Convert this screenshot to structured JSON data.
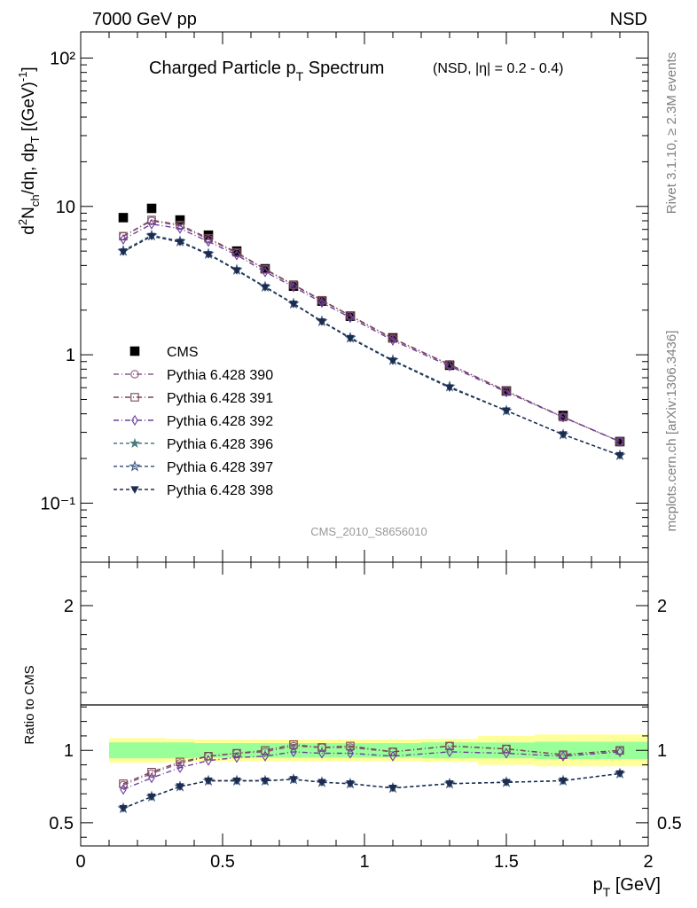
{
  "header": {
    "energy_label": "7000 GeV pp",
    "process_label": "NSD",
    "title_main": "Charged Particle p",
    "title_main_sub": "T",
    "title_main_tail": " Spectrum",
    "title_cut": "(NSD, |η| = 0.2 - 0.4)",
    "analysis_id": "CMS_2010_S8656010"
  },
  "side": {
    "rivet_label": "Rivet 3.1.10, ≥ 2.3M events",
    "source_label": "mcplots.cern.ch [arXiv:1306.3436]"
  },
  "colors": {
    "cms": "#000000",
    "p390": "#8a5a86",
    "p391": "#7a4552",
    "p392": "#6b3fa0",
    "p396": "#4a7c80",
    "p397": "#3a5a80",
    "p398": "#1d2b4f",
    "band_inner": "#99ff99",
    "band_outer": "#ffff99"
  },
  "chart_data": [
    {
      "type": "scatter",
      "panel": "main",
      "ylabel": "d²N_ch/dη, dp_T [(GeV)⁻¹]",
      "yscale": "log",
      "ylim": [
        0.04,
        150
      ],
      "xlim": [
        0,
        2
      ],
      "ytick_labels": [
        "10⁻¹",
        "1",
        "10",
        "10²"
      ],
      "x": [
        0.15,
        0.25,
        0.35,
        0.45,
        0.55,
        0.65,
        0.75,
        0.85,
        0.95,
        1.1,
        1.3,
        1.5,
        1.7,
        1.9
      ],
      "series": [
        {
          "name": "CMS",
          "key": "cms",
          "marker": "filled-square",
          "values": [
            8.4,
            9.7,
            8.1,
            6.4,
            5.0,
            3.8,
            2.9,
            2.3,
            1.82,
            1.3,
            0.85,
            0.57,
            0.39,
            0.26
          ]
        },
        {
          "name": "Pythia 6.428 390",
          "key": "p390",
          "marker": "open-circle",
          "dash": "6,3,1,3",
          "values": [
            6.3,
            8.0,
            7.4,
            6.0,
            4.85,
            3.75,
            2.95,
            2.32,
            1.83,
            1.28,
            0.86,
            0.57,
            0.38,
            0.26
          ]
        },
        {
          "name": "Pythia 6.428 391",
          "key": "p391",
          "marker": "open-square",
          "dash": "6,3,1,3",
          "values": [
            6.3,
            8.1,
            7.5,
            6.1,
            4.9,
            3.78,
            2.97,
            2.33,
            1.84,
            1.29,
            0.86,
            0.57,
            0.38,
            0.26
          ]
        },
        {
          "name": "Pythia 6.428 392",
          "key": "p392",
          "marker": "open-diamond",
          "dash": "6,3,1,3",
          "values": [
            6.0,
            7.6,
            7.1,
            5.8,
            4.7,
            3.62,
            2.87,
            2.25,
            1.78,
            1.25,
            0.84,
            0.56,
            0.38,
            0.26
          ]
        },
        {
          "name": "Pythia 6.428 396",
          "key": "p396",
          "marker": "filled-star",
          "dash": "4,3",
          "values": [
            5.05,
            6.4,
            5.85,
            4.8,
            3.75,
            2.88,
            2.22,
            1.69,
            1.31,
            0.92,
            0.61,
            0.42,
            0.29,
            0.21
          ]
        },
        {
          "name": "Pythia 6.428 397",
          "key": "p397",
          "marker": "open-star",
          "dash": "4,3",
          "values": [
            5.0,
            6.35,
            5.8,
            4.78,
            3.73,
            2.87,
            2.21,
            1.68,
            1.3,
            0.92,
            0.61,
            0.42,
            0.29,
            0.21
          ]
        },
        {
          "name": "Pythia 6.428 398",
          "key": "p398",
          "marker": "filled-triangle-down",
          "dash": "4,3",
          "values": [
            4.95,
            6.3,
            5.75,
            4.75,
            3.7,
            2.85,
            2.2,
            1.67,
            1.29,
            0.91,
            0.6,
            0.42,
            0.29,
            0.21
          ]
        }
      ]
    },
    {
      "type": "scatter",
      "panel": "ratio",
      "ylabel": "Ratio to CMS",
      "xlabel": "p_T [GeV]",
      "ylim": [
        0.34,
        2.3
      ],
      "xlim": [
        0,
        2
      ],
      "ytick_labels": [
        "0.5",
        "1",
        "2"
      ],
      "xtick_labels": [
        "0",
        "0.5",
        "1",
        "1.5",
        "2"
      ],
      "x": [
        0.15,
        0.25,
        0.35,
        0.45,
        0.55,
        0.65,
        0.75,
        0.85,
        0.95,
        1.1,
        1.3,
        1.5,
        1.7,
        1.9
      ],
      "band_bins": [
        0.1,
        0.2,
        0.3,
        0.4,
        0.5,
        0.6,
        0.7,
        0.8,
        0.9,
        1.0,
        1.2,
        1.4,
        1.6,
        1.8,
        2.0
      ],
      "band_inner": [
        0.055,
        0.055,
        0.055,
        0.05,
        0.05,
        0.05,
        0.05,
        0.05,
        0.05,
        0.05,
        0.055,
        0.055,
        0.06,
        0.06
      ],
      "band_outer": [
        0.085,
        0.085,
        0.08,
        0.075,
        0.075,
        0.075,
        0.075,
        0.075,
        0.075,
        0.075,
        0.08,
        0.1,
        0.11,
        0.11
      ],
      "series": [
        {
          "name": "Pythia 6.428 390",
          "key": "p390",
          "marker": "open-circle",
          "dash": "6,3,1,3",
          "values": [
            0.76,
            0.84,
            0.91,
            0.96,
            0.98,
            0.99,
            1.03,
            1.02,
            1.02,
            0.99,
            1.03,
            1.01,
            0.97,
            1.0
          ]
        },
        {
          "name": "Pythia 6.428 391",
          "key": "p391",
          "marker": "open-square",
          "dash": "6,3,1,3",
          "values": [
            0.77,
            0.85,
            0.92,
            0.96,
            0.98,
            1.0,
            1.04,
            1.02,
            1.03,
            0.99,
            1.03,
            1.01,
            0.97,
            1.0
          ]
        },
        {
          "name": "Pythia 6.428 392",
          "key": "p392",
          "marker": "open-diamond",
          "dash": "6,3,1,3",
          "values": [
            0.73,
            0.81,
            0.88,
            0.93,
            0.95,
            0.96,
            0.99,
            0.98,
            0.98,
            0.96,
            0.99,
            0.98,
            0.96,
            0.99
          ]
        },
        {
          "name": "Pythia 6.428 396",
          "key": "p396",
          "marker": "filled-star",
          "dash": "4,3",
          "values": [
            0.6,
            0.68,
            0.75,
            0.79,
            0.79,
            0.79,
            0.8,
            0.78,
            0.77,
            0.74,
            0.77,
            0.78,
            0.79,
            0.84
          ]
        },
        {
          "name": "Pythia 6.428 397",
          "key": "p397",
          "marker": "open-star",
          "dash": "4,3",
          "values": [
            0.6,
            0.68,
            0.75,
            0.79,
            0.79,
            0.79,
            0.8,
            0.78,
            0.77,
            0.74,
            0.77,
            0.78,
            0.79,
            0.84
          ]
        },
        {
          "name": "Pythia 6.428 398",
          "key": "p398",
          "marker": "filled-triangle-down",
          "dash": "4,3",
          "values": [
            0.6,
            0.68,
            0.75,
            0.79,
            0.79,
            0.79,
            0.8,
            0.78,
            0.77,
            0.74,
            0.77,
            0.78,
            0.79,
            0.84
          ]
        }
      ]
    }
  ],
  "legend": {
    "placement": "middle-left",
    "entries": [
      {
        "label": "CMS",
        "key": "cms",
        "marker": "filled-square",
        "dash": ""
      },
      {
        "label": "Pythia 6.428 390",
        "key": "p390",
        "marker": "open-circle",
        "dash": "6,3,1,3"
      },
      {
        "label": "Pythia 6.428 391",
        "key": "p391",
        "marker": "open-square",
        "dash": "6,3,1,3"
      },
      {
        "label": "Pythia 6.428 392",
        "key": "p392",
        "marker": "open-diamond",
        "dash": "6,3,1,3"
      },
      {
        "label": "Pythia 6.428 396",
        "key": "p396",
        "marker": "filled-star",
        "dash": "4,3"
      },
      {
        "label": "Pythia 6.428 397",
        "key": "p397",
        "marker": "open-star",
        "dash": "4,3"
      },
      {
        "label": "Pythia 6.428 398",
        "key": "p398",
        "marker": "filled-triangle-down",
        "dash": "4,3"
      }
    ]
  }
}
